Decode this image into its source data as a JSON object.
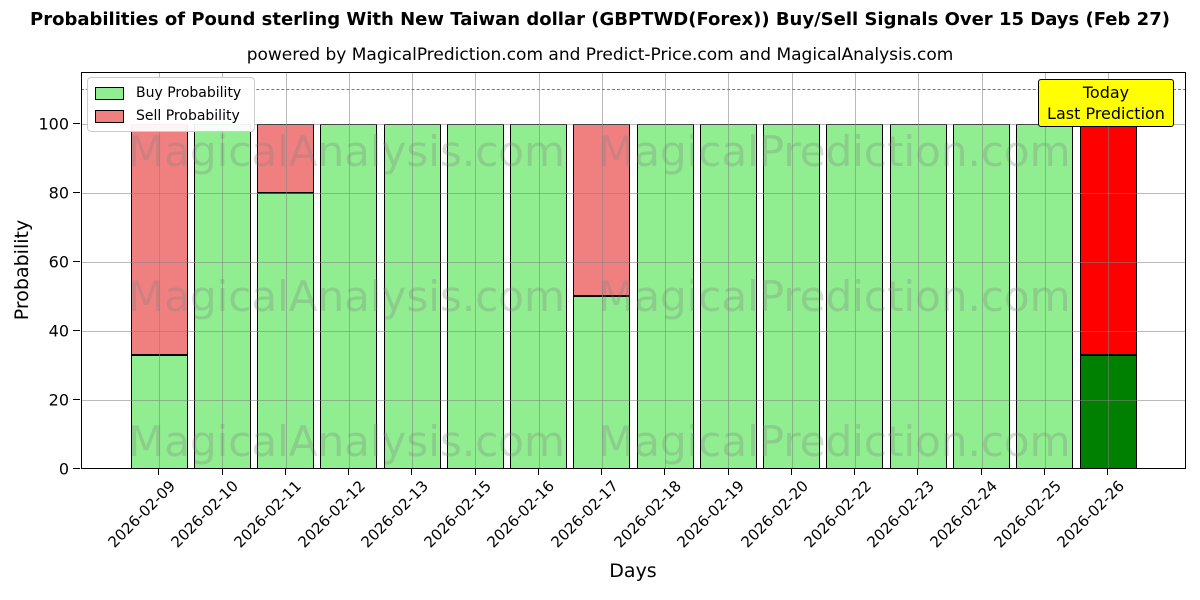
{
  "chart_data": {
    "type": "bar",
    "stacked": true,
    "title": "Probabilities of Pound sterling With New Taiwan dollar (GBPTWD(Forex)) Buy/Sell Signals Over 15 Days (Feb 27)",
    "subtitle": "powered by MagicalPrediction.com and Predict-Price.com and MagicalAnalysis.com",
    "xlabel": "Days",
    "ylabel": "Probability",
    "ylim": [
      0,
      115
    ],
    "yticks": [
      0,
      20,
      40,
      60,
      80,
      100
    ],
    "grid": true,
    "dashed_guide_y": 110,
    "legend_position": "upper-left",
    "categories": [
      "2026-02-09",
      "2026-02-10",
      "2026-02-11",
      "2026-02-12",
      "2026-02-13",
      "2026-02-15",
      "2026-02-16",
      "2026-02-17",
      "2026-02-18",
      "2026-02-19",
      "2026-02-20",
      "2026-02-22",
      "2026-02-23",
      "2026-02-24",
      "2026-02-25",
      "2026-02-26"
    ],
    "series": [
      {
        "name": "Buy Probability",
        "color": "#90ee90",
        "today_color": "#008000",
        "values": [
          33,
          100,
          80,
          100,
          100,
          100,
          100,
          50,
          100,
          100,
          100,
          100,
          100,
          100,
          100,
          33
        ]
      },
      {
        "name": "Sell Probability",
        "color": "#f08080",
        "today_color": "#ff0000",
        "values": [
          67,
          0,
          20,
          0,
          0,
          0,
          0,
          50,
          0,
          0,
          0,
          0,
          0,
          0,
          0,
          67
        ]
      }
    ],
    "today_index": 15,
    "annotation": {
      "lines": [
        "Today",
        "Last Prediction"
      ],
      "bg_color": "#ffff00"
    },
    "watermarks": {
      "left": "MagicalAnalysis.com",
      "right": "MagicalPrediction.com"
    }
  }
}
